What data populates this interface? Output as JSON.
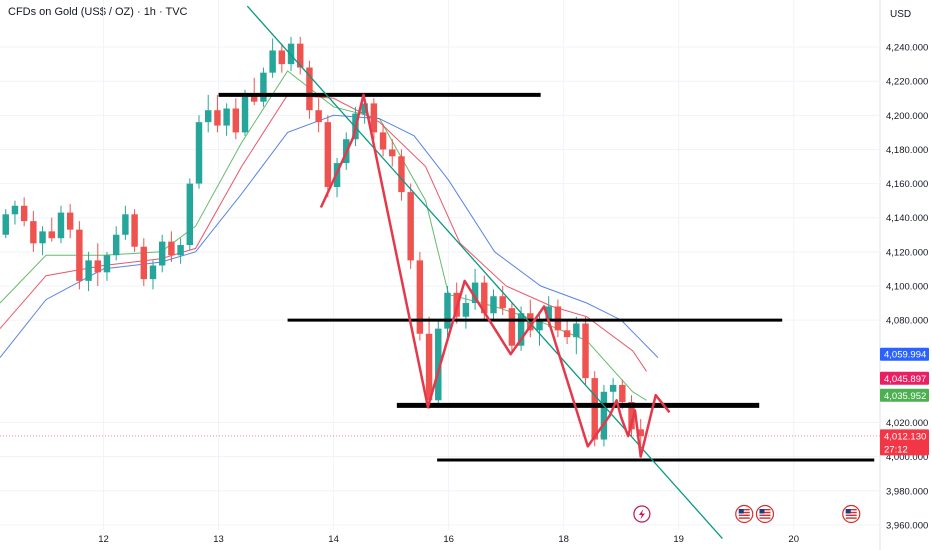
{
  "header": {
    "title": "CFDs on Gold (US$ / OZ) · 1h · TVC",
    "currency": "USD"
  },
  "colors": {
    "bull": "#26a69a",
    "bear": "#ef5350",
    "ma_fast": "#4caf50",
    "ma_mid": "#e53950",
    "ma_slow": "#3d6fe0",
    "trendline": "#089981",
    "zigzag": "#e5394b",
    "level": "#000000",
    "tag_blue": "#2962ff",
    "tag_pink": "#e91e63",
    "tag_green": "#4caf50",
    "tag_red": "#f23645"
  },
  "chart_data": {
    "type": "candlestick",
    "x_ticks": [
      {
        "label": "12",
        "x": 12
      },
      {
        "label": "13",
        "x": 13
      },
      {
        "label": "14",
        "x": 14
      },
      {
        "label": "16",
        "x": 15
      },
      {
        "label": "18",
        "x": 16
      },
      {
        "label": "19",
        "x": 17
      },
      {
        "label": "20",
        "x": 18
      }
    ],
    "y_ticks": [
      "4,240.000",
      "4,220.000",
      "4,200.000",
      "4,180.000",
      "4,160.000",
      "4,140.000",
      "4,120.000",
      "4,100.000",
      "4,080.000",
      "4,020.000",
      "4,000.000",
      "3,980.000",
      "3,960.000"
    ],
    "y_tick_values": [
      4240,
      4220,
      4200,
      4180,
      4160,
      4140,
      4120,
      4100,
      4080,
      4020,
      4000,
      3980,
      3960
    ],
    "ylim": [
      3957,
      4250
    ],
    "xlim": [
      11.1,
      18.75
    ],
    "candles": [
      [
        11.15,
        4130,
        4145,
        4128,
        4142
      ],
      [
        11.23,
        4142,
        4150,
        4136,
        4147
      ],
      [
        11.31,
        4147,
        4152,
        4135,
        4138
      ],
      [
        11.39,
        4138,
        4144,
        4120,
        4125
      ],
      [
        11.47,
        4125,
        4135,
        4118,
        4132
      ],
      [
        11.55,
        4132,
        4140,
        4126,
        4128
      ],
      [
        11.63,
        4128,
        4147,
        4125,
        4143
      ],
      [
        11.71,
        4143,
        4148,
        4128,
        4133
      ],
      [
        11.79,
        4133,
        4138,
        4098,
        4103
      ],
      [
        11.87,
        4103,
        4120,
        4097,
        4115
      ],
      [
        11.95,
        4115,
        4125,
        4100,
        4108
      ],
      [
        12.03,
        4108,
        4120,
        4103,
        4118
      ],
      [
        12.11,
        4118,
        4135,
        4115,
        4130
      ],
      [
        12.19,
        4130,
        4147,
        4127,
        4142
      ],
      [
        12.27,
        4142,
        4145,
        4120,
        4123
      ],
      [
        12.35,
        4123,
        4128,
        4100,
        4104
      ],
      [
        12.43,
        4104,
        4115,
        4098,
        4112
      ],
      [
        12.51,
        4112,
        4130,
        4108,
        4126
      ],
      [
        12.59,
        4126,
        4132,
        4114,
        4118
      ],
      [
        12.67,
        4118,
        4128,
        4113,
        4124
      ],
      [
        12.75,
        4124,
        4163,
        4121,
        4160
      ],
      [
        12.83,
        4160,
        4200,
        4157,
        4196
      ],
      [
        12.91,
        4196,
        4212,
        4190,
        4203
      ],
      [
        12.99,
        4203,
        4212,
        4190,
        4194
      ],
      [
        13.07,
        4194,
        4207,
        4188,
        4204
      ],
      [
        13.15,
        4204,
        4210,
        4186,
        4190
      ],
      [
        13.23,
        4190,
        4215,
        4188,
        4212
      ],
      [
        13.31,
        4212,
        4222,
        4206,
        4208
      ],
      [
        13.39,
        4208,
        4228,
        4205,
        4225
      ],
      [
        13.47,
        4225,
        4245,
        4222,
        4238
      ],
      [
        13.55,
        4238,
        4242,
        4225,
        4230
      ],
      [
        13.63,
        4230,
        4246,
        4226,
        4242
      ],
      [
        13.71,
        4242,
        4246,
        4224,
        4228
      ],
      [
        13.79,
        4228,
        4232,
        4198,
        4203
      ],
      [
        13.87,
        4203,
        4210,
        4190,
        4196
      ],
      [
        13.95,
        4196,
        4200,
        4152,
        4158
      ],
      [
        14.03,
        4158,
        4175,
        4152,
        4172
      ],
      [
        14.11,
        4172,
        4190,
        4168,
        4186
      ],
      [
        14.19,
        4186,
        4205,
        4182,
        4201
      ],
      [
        14.27,
        4201,
        4212,
        4195,
        4207
      ],
      [
        14.35,
        4207,
        4210,
        4186,
        4190
      ],
      [
        14.43,
        4190,
        4195,
        4176,
        4180
      ],
      [
        14.51,
        4180,
        4186,
        4170,
        4176
      ],
      [
        14.59,
        4176,
        4180,
        4150,
        4155
      ],
      [
        14.67,
        4155,
        4160,
        4110,
        4115
      ],
      [
        14.75,
        4115,
        4120,
        4068,
        4072
      ],
      [
        14.83,
        4072,
        4082,
        4028,
        4033
      ],
      [
        14.91,
        4033,
        4080,
        4030,
        4075
      ],
      [
        14.99,
        4075,
        4100,
        4070,
        4096
      ],
      [
        15.07,
        4096,
        4102,
        4078,
        4082
      ],
      [
        15.15,
        4082,
        4095,
        4075,
        4090
      ],
      [
        15.23,
        4090,
        4110,
        4086,
        4102
      ],
      [
        15.31,
        4102,
        4106,
        4080,
        4084
      ],
      [
        15.39,
        4084,
        4098,
        4080,
        4094
      ],
      [
        15.47,
        4094,
        4100,
        4083,
        4087
      ],
      [
        15.55,
        4087,
        4090,
        4060,
        4065
      ],
      [
        15.63,
        4065,
        4088,
        4062,
        4084
      ],
      [
        15.71,
        4084,
        4092,
        4070,
        4074
      ],
      [
        15.79,
        4074,
        4084,
        4065,
        4080
      ],
      [
        15.87,
        4080,
        4094,
        4076,
        4088
      ],
      [
        15.95,
        4088,
        4092,
        4070,
        4074
      ],
      [
        16.03,
        4074,
        4080,
        4066,
        4070
      ],
      [
        16.11,
        4070,
        4082,
        4060,
        4078
      ],
      [
        16.19,
        4078,
        4082,
        4042,
        4046
      ],
      [
        16.27,
        4046,
        4050,
        4006,
        4010
      ],
      [
        16.35,
        4010,
        4042,
        4006,
        4038
      ],
      [
        16.43,
        4038,
        4046,
        4030,
        4042
      ],
      [
        16.51,
        4042,
        4045,
        4028,
        4032
      ],
      [
        16.59,
        4032,
        4036,
        4012,
        4016
      ],
      [
        16.67,
        4016,
        4022,
        4006,
        4012
      ]
    ],
    "moving_averages": [
      {
        "key": "fast",
        "points": [
          [
            11.1,
            4090
          ],
          [
            11.5,
            4118
          ],
          [
            12.0,
            4118
          ],
          [
            12.5,
            4120
          ],
          [
            12.8,
            4135
          ],
          [
            13.2,
            4184
          ],
          [
            13.6,
            4226
          ],
          [
            14.0,
            4205
          ],
          [
            14.4,
            4198
          ],
          [
            14.8,
            4150
          ],
          [
            15.0,
            4095
          ],
          [
            15.4,
            4088
          ],
          [
            15.8,
            4079
          ],
          [
            16.2,
            4068
          ],
          [
            16.6,
            4038
          ],
          [
            16.72,
            4033
          ]
        ]
      },
      {
        "key": "mid",
        "points": [
          [
            11.1,
            4075
          ],
          [
            11.5,
            4106
          ],
          [
            12.0,
            4112
          ],
          [
            12.5,
            4116
          ],
          [
            12.8,
            4122
          ],
          [
            13.2,
            4170
          ],
          [
            13.6,
            4212
          ],
          [
            14.0,
            4210
          ],
          [
            14.4,
            4196
          ],
          [
            14.8,
            4170
          ],
          [
            15.1,
            4125
          ],
          [
            15.5,
            4100
          ],
          [
            15.9,
            4088
          ],
          [
            16.2,
            4082
          ],
          [
            16.6,
            4062
          ],
          [
            16.72,
            4050
          ]
        ]
      },
      {
        "key": "slow",
        "points": [
          [
            11.1,
            4058
          ],
          [
            11.5,
            4092
          ],
          [
            12.0,
            4110
          ],
          [
            12.5,
            4114
          ],
          [
            12.8,
            4120
          ],
          [
            13.2,
            4154
          ],
          [
            13.6,
            4190
          ],
          [
            14.0,
            4200
          ],
          [
            14.4,
            4198
          ],
          [
            14.7,
            4188
          ],
          [
            15.0,
            4162
          ],
          [
            15.4,
            4120
          ],
          [
            15.8,
            4100
          ],
          [
            16.2,
            4090
          ],
          [
            16.5,
            4080
          ],
          [
            16.82,
            4058
          ]
        ]
      }
    ],
    "trendline": [
      [
        13.25,
        4264
      ],
      [
        17.38,
        3952
      ]
    ],
    "zigzag": [
      [
        13.89,
        4146
      ],
      [
        14.17,
        4187
      ],
      [
        14.26,
        4212
      ],
      [
        14.82,
        4029
      ],
      [
        15.14,
        4103
      ],
      [
        15.54,
        4060
      ],
      [
        15.83,
        4088
      ],
      [
        16.21,
        4006
      ],
      [
        16.4,
        4024
      ],
      [
        16.46,
        4033
      ],
      [
        16.5,
        4023
      ],
      [
        16.56,
        4012
      ],
      [
        16.62,
        4027
      ],
      [
        16.67,
        4000
      ],
      [
        16.8,
        4036
      ],
      [
        16.92,
        4026
      ]
    ],
    "levels": [
      {
        "y": 4212,
        "x1": 13.0,
        "x2": 15.8,
        "w": 4
      },
      {
        "y": 4080,
        "x1": 13.6,
        "x2": 17.9,
        "w": 3
      },
      {
        "y": 4030,
        "x1": 14.55,
        "x2": 17.7,
        "w": 5
      },
      {
        "y": 3998,
        "x1": 14.9,
        "x2": 18.7,
        "w": 3
      }
    ],
    "current_price_line": 4012.13,
    "price_tags": [
      {
        "label": "4,059.994",
        "value": 4059.994,
        "color": "tag_blue"
      },
      {
        "label": "4,045.897",
        "value": 4045.897,
        "color": "tag_pink"
      },
      {
        "label": "4,035.952",
        "value": 4035.952,
        "color": "tag_green"
      },
      {
        "label": "4,012.130",
        "value": 4012.13,
        "color": "tag_red",
        "countdown": "27:12"
      }
    ],
    "event_icons": [
      {
        "kind": "lightning",
        "x": 16.68
      },
      {
        "kind": "us-flag",
        "x": 17.57
      },
      {
        "kind": "us-flag",
        "x": 17.75
      },
      {
        "kind": "us-flag",
        "x": 18.5
      }
    ]
  }
}
